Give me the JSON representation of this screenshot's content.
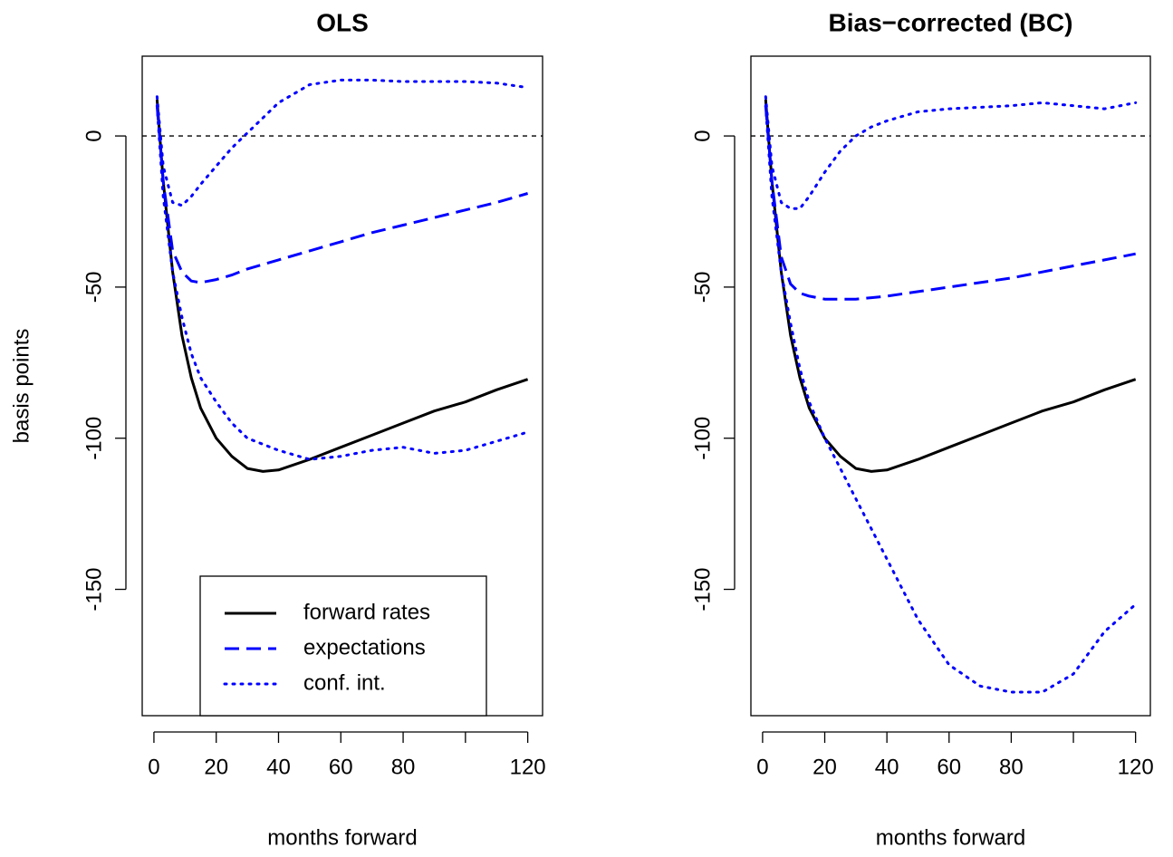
{
  "chart_data": [
    {
      "type": "line",
      "title": "OLS",
      "xlabel": "months forward",
      "ylabel": "basis points",
      "x": [
        1,
        3,
        6,
        9,
        12,
        15,
        20,
        25,
        30,
        35,
        40,
        50,
        60,
        70,
        80,
        90,
        100,
        110,
        120
      ],
      "xlim": [
        -3.76,
        124.76
      ],
      "ylim": [
        -191.8,
        26.4
      ],
      "xticks": [
        0,
        20,
        40,
        60,
        80,
        {
          "value": 100,
          "label": null
        },
        120
      ],
      "yticks": [
        0,
        -50,
        -100,
        -150
      ],
      "hline": 0,
      "legend": "bottom",
      "series": [
        {
          "name": "forward rates",
          "color": "#000000",
          "dash": "solid",
          "values": [
            12,
            -15,
            -45,
            -66,
            -80,
            -90,
            -100,
            -106,
            -110,
            -111,
            -110.5,
            -107,
            -103,
            -99,
            -95,
            -91,
            -88,
            -84,
            -80.5
          ]
        },
        {
          "name": "expectations",
          "color": "#0000ff",
          "dash": "dashed",
          "values": [
            10,
            -15,
            -38,
            -45,
            -48,
            -48.5,
            -47.5,
            -46,
            -44,
            -42.5,
            -41,
            -38,
            -35,
            -32,
            -29.5,
            -27,
            -24.5,
            -22,
            -19
          ]
        },
        {
          "name": "conf. int.",
          "color": "#0000ff",
          "dash": "dotted",
          "values": [
            13,
            -10,
            -22,
            -23,
            -20,
            -16,
            -10,
            -4,
            1,
            6,
            11,
            17,
            18.5,
            18.5,
            18,
            18,
            18,
            17.5,
            16
          ]
        },
        {
          "color": "#0000ff",
          "dash": "dotted",
          "values": [
            10,
            -20,
            -45,
            -60,
            -72,
            -80,
            -88,
            -95,
            -100,
            -102,
            -104,
            -107,
            -106,
            -104,
            -103,
            -105,
            -104,
            -101,
            -98
          ]
        }
      ]
    },
    {
      "type": "line",
      "title": "Bias−corrected (BC)",
      "xlabel": "months forward",
      "x": [
        1,
        3,
        6,
        9,
        12,
        15,
        20,
        25,
        30,
        35,
        40,
        50,
        60,
        70,
        80,
        90,
        100,
        110,
        120
      ],
      "xlim": [
        -3.76,
        124.76
      ],
      "ylim": [
        -191.8,
        26.4
      ],
      "xticks": [
        0,
        20,
        40,
        60,
        80,
        {
          "value": 100,
          "label": null
        },
        120
      ],
      "yticks": [
        0,
        -50,
        -100,
        -150
      ],
      "hline": 0,
      "series": [
        {
          "color": "#000000",
          "dash": "solid",
          "values": [
            12,
            -15,
            -45,
            -66,
            -80,
            -90,
            -100,
            -106,
            -110,
            -111,
            -110.5,
            -107,
            -103,
            -99,
            -95,
            -91,
            -88,
            -84,
            -80.5
          ]
        },
        {
          "color": "#0000ff",
          "dash": "dashed",
          "values": [
            10,
            -15,
            -40,
            -49,
            -52,
            -53,
            -54,
            -54,
            -54,
            -53.5,
            -53,
            -51.5,
            -50,
            -48.5,
            -47,
            -45,
            -43,
            -41,
            -39
          ]
        },
        {
          "color": "#0000ff",
          "dash": "dotted",
          "values": [
            13,
            -10,
            -22,
            -24,
            -24,
            -20,
            -12,
            -5,
            0,
            3,
            5,
            8,
            9,
            9.5,
            10,
            11,
            10,
            9,
            11
          ]
        },
        {
          "color": "#0000ff",
          "dash": "dotted",
          "values": [
            10,
            -20,
            -45,
            -62,
            -77,
            -88,
            -100,
            -110,
            -120,
            -130,
            -140,
            -160,
            -175,
            -182,
            -184,
            -184,
            -178,
            -164,
            -155
          ]
        }
      ]
    }
  ]
}
